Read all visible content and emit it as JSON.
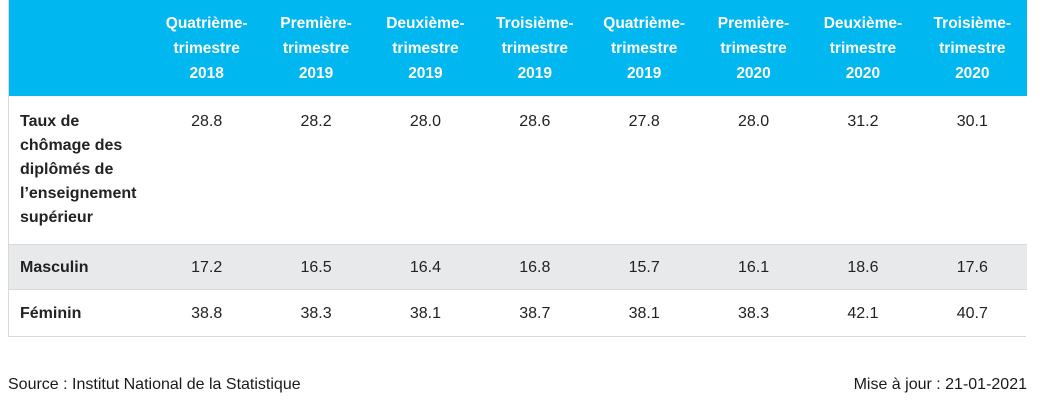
{
  "table": {
    "headers": [
      {
        "line1": "Quatrième-",
        "line2": "trimestre",
        "line3": "2018"
      },
      {
        "line1": "Première-",
        "line2": "trimestre",
        "line3": "2019"
      },
      {
        "line1": "Deuxième-",
        "line2": "trimestre",
        "line3": "2019"
      },
      {
        "line1": "Troisième-",
        "line2": "trimestre",
        "line3": "2019"
      },
      {
        "line1": "Quatrième-",
        "line2": "trimestre",
        "line3": "2019"
      },
      {
        "line1": "Première-",
        "line2": "trimestre",
        "line3": "2020"
      },
      {
        "line1": "Deuxième-",
        "line2": "trimestre",
        "line3": "2020"
      },
      {
        "line1": "Troisième-",
        "line2": "trimestre",
        "line3": "2020"
      }
    ],
    "rows": [
      {
        "label_lines": [
          "Taux de",
          "chômage des",
          "diplômés de",
          "l’enseignement",
          "supérieur"
        ],
        "values": [
          "28.8",
          "28.2",
          "28.0",
          "28.6",
          "27.8",
          "28.0",
          "31.2",
          "30.1"
        ]
      },
      {
        "label_lines": [
          "Masculin"
        ],
        "values": [
          "17.2",
          "16.5",
          "16.4",
          "16.8",
          "15.7",
          "16.1",
          "18.6",
          "17.6"
        ]
      },
      {
        "label_lines": [
          "Féminin"
        ],
        "values": [
          "38.8",
          "38.3",
          "38.1",
          "38.7",
          "38.1",
          "38.3",
          "42.1",
          "40.7"
        ]
      }
    ]
  },
  "footer": {
    "source": "Source : Institut National de la Statistique",
    "updated": "Mise à jour : 21-01-2021"
  },
  "colors": {
    "header_bg": "#00b7ef",
    "header_text": "#ffffff",
    "alt_row_bg": "#e8e9eb"
  }
}
